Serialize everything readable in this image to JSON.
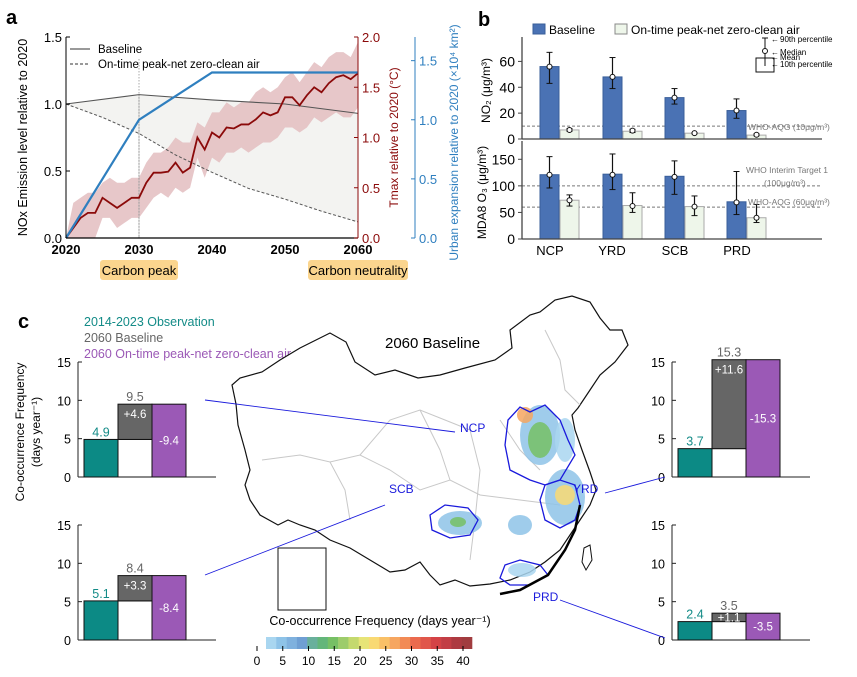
{
  "chart_data": [
    {
      "id": "a",
      "panel_label": "a",
      "type": "line",
      "x": [
        2020,
        2030,
        2040,
        2050,
        2060
      ],
      "xlim": [
        2020,
        2060
      ],
      "xticks": [
        "2020",
        "2030",
        "2040",
        "2050",
        "2060"
      ],
      "ylabel_left": "NOx Emission level relative to 2020",
      "ylim_left": [
        0,
        1.5
      ],
      "yticks_left": [
        "0.0",
        "0.5",
        "1.0",
        "1.5"
      ],
      "ylabel_right1": "Tmax relative to 2020 (°C)",
      "ylim_right1": [
        0,
        2.0
      ],
      "yticks_right1": [
        "0.0",
        "0.5",
        "1.0",
        "1.5",
        "2.0"
      ],
      "ylabel_right2": "Urban expansion relative to 2020 (×10⁴ km²)",
      "ylim_right2": [
        0,
        1.7
      ],
      "yticks_right2": [
        "0.0",
        "0.5",
        "1.0",
        "1.5"
      ],
      "legend": [
        "Baseline",
        "On-time peak-net zero-clean air"
      ],
      "legend_position": "top-left",
      "annotations": [
        "Carbon peak",
        "Carbon neutrality"
      ],
      "annotation_color": "#fbd58e",
      "series": [
        {
          "name": "Baseline",
          "axis": "left",
          "style": "solid",
          "color": "#555555",
          "x": [
            2020,
            2030,
            2040,
            2050,
            2060
          ],
          "values": [
            1.0,
            1.07,
            1.03,
            1.0,
            0.93
          ]
        },
        {
          "name": "On-time peak-net zero-clean air",
          "axis": "left",
          "style": "dashed",
          "color": "#555555",
          "x": [
            2020,
            2025,
            2030,
            2035,
            2040,
            2045,
            2050,
            2055,
            2060
          ],
          "values": [
            1.0,
            0.9,
            0.78,
            0.62,
            0.49,
            0.37,
            0.29,
            0.2,
            0.12
          ]
        },
        {
          "name": "Tmax",
          "axis": "right1",
          "style": "solid",
          "color": "#8b0a0a",
          "x": [
            2020,
            2021,
            2022,
            2023,
            2024,
            2025,
            2026,
            2027,
            2028,
            2029,
            2030,
            2031,
            2032,
            2033,
            2034,
            2035,
            2036,
            2037,
            2038,
            2039,
            2040,
            2041,
            2042,
            2043,
            2044,
            2045,
            2046,
            2047,
            2048,
            2049,
            2050,
            2051,
            2052,
            2053,
            2054,
            2055,
            2056,
            2057,
            2058,
            2059,
            2060
          ],
          "values": [
            0.0,
            0.1,
            0.2,
            0.25,
            0.25,
            0.4,
            0.35,
            0.3,
            0.35,
            0.4,
            0.4,
            0.55,
            0.65,
            0.65,
            0.66,
            0.75,
            0.65,
            0.7,
            1.0,
            0.88,
            1.05,
            1.0,
            1.1,
            1.09,
            1.13,
            1.13,
            1.18,
            1.25,
            1.22,
            1.25,
            1.4,
            1.4,
            1.32,
            1.42,
            1.5,
            1.45,
            1.54,
            1.6,
            1.62,
            1.58,
            1.64
          ],
          "band_low": [
            0.0,
            0.0,
            0.0,
            0.0,
            0.0,
            0.2,
            0.2,
            0.1,
            0.15,
            0.2,
            0.2,
            0.3,
            0.4,
            0.45,
            0.4,
            0.5,
            0.45,
            0.5,
            0.8,
            0.6,
            0.8,
            0.75,
            0.85,
            0.85,
            0.9,
            0.85,
            0.9,
            0.95,
            0.95,
            1.0,
            1.1,
            1.1,
            1.05,
            1.1,
            1.2,
            1.15,
            1.2,
            1.25,
            1.2,
            1.2,
            1.3
          ],
          "band_high": [
            0.0,
            0.35,
            0.4,
            0.45,
            0.45,
            0.55,
            0.6,
            0.55,
            0.55,
            0.6,
            0.6,
            0.75,
            0.85,
            0.85,
            0.9,
            1.0,
            0.95,
            0.95,
            1.15,
            1.1,
            1.25,
            1.25,
            1.35,
            1.3,
            1.35,
            1.35,
            1.45,
            1.5,
            1.45,
            1.5,
            1.6,
            1.65,
            1.55,
            1.65,
            1.75,
            1.7,
            1.8,
            1.85,
            1.85,
            1.8,
            1.95
          ]
        },
        {
          "name": "Urban expansion",
          "axis": "right2",
          "style": "solid",
          "color": "#2f7fbf",
          "x": [
            2020,
            2030,
            2040,
            2060
          ],
          "values": [
            0.0,
            1.0,
            1.4,
            1.4
          ]
        }
      ]
    },
    {
      "id": "b-no2",
      "panel_label": "b",
      "type": "bar",
      "categories": [
        "NCP",
        "YRD",
        "SCB",
        "PRD"
      ],
      "ylabel": "NO₂ (μg/m³)",
      "ylim": [
        0,
        75
      ],
      "yticks": [
        "0",
        "20",
        "40",
        "60"
      ],
      "legend": [
        "Baseline",
        "On-time peak-net zero-clean air"
      ],
      "legend_position": "top",
      "series": [
        {
          "name": "Baseline",
          "color": "#4a72b4",
          "mean": [
            56,
            48,
            32,
            22
          ],
          "median": [
            56,
            48,
            32,
            22
          ],
          "p10": [
            43,
            39,
            27,
            16
          ],
          "p90": [
            67,
            63,
            39,
            31
          ]
        },
        {
          "name": "On-time peak-net zero-clean air",
          "color": "#eef6ea",
          "mean": [
            7,
            6,
            4.5,
            3
          ],
          "median": [
            7,
            6.5,
            4.5,
            3.3
          ],
          "p10": [
            6,
            5,
            4,
            2.5
          ],
          "p90": [
            8,
            7.5,
            5,
            4
          ]
        }
      ],
      "reference_lines": [
        {
          "value": 10,
          "label": "WHO-AQG (10μg/m³)"
        }
      ],
      "whisker_legend": [
        "90th percentile",
        "Median",
        "Mean",
        "10th percentile"
      ]
    },
    {
      "id": "b-o3",
      "type": "bar",
      "categories": [
        "NCP",
        "YRD",
        "SCB",
        "PRD"
      ],
      "ylabel": "MDA8 O₃ (μg/m³)",
      "ylim": [
        0,
        175
      ],
      "yticks": [
        "0",
        "50",
        "100",
        "150"
      ],
      "series": [
        {
          "name": "Baseline",
          "color": "#4a72b4",
          "mean": [
            121,
            122,
            118,
            70
          ],
          "median": [
            121,
            121,
            117,
            69
          ],
          "p10": [
            96,
            93,
            84,
            46
          ],
          "p90": [
            155,
            160,
            147,
            127
          ]
        },
        {
          "name": "On-time peak-net zero-clean air",
          "color": "#eef6ea",
          "mean": [
            73,
            63,
            61,
            40
          ],
          "median": [
            73,
            62,
            61,
            40
          ],
          "p10": [
            62,
            50,
            44,
            31
          ],
          "p90": [
            83,
            87,
            81,
            65
          ]
        }
      ],
      "reference_lines": [
        {
          "value": 100,
          "label": "WHO Interim Target 1",
          "label2": "(100μg/m³)"
        },
        {
          "value": 60,
          "label": "WHO-AQG (60μg/m³)"
        }
      ]
    },
    {
      "id": "c",
      "panel_label": "c",
      "type": "bar",
      "title": "2060 Baseline",
      "ylabel": "Co-occurrence Frequency (days year⁻¹)",
      "ylim": [
        0,
        15
      ],
      "yticks": [
        "0",
        "5",
        "10",
        "15"
      ],
      "legend": [
        {
          "label": "2014-2023 Observation",
          "color": "#138b87"
        },
        {
          "label": "2060 Baseline",
          "color": "#666666"
        },
        {
          "label": "2060 On-time peak-net zero-clean air",
          "color": "#9b59b6"
        }
      ],
      "regions": [
        {
          "name": "NCP",
          "observation": 4.9,
          "baseline": 9.5,
          "increase": "+4.6",
          "clean_air_change": "-9.4",
          "obs_label": "4.9",
          "base_label": "9.5"
        },
        {
          "name": "SCB",
          "observation": 5.1,
          "baseline": 8.4,
          "increase": "+3.3",
          "clean_air_change": "-8.4",
          "obs_label": "5.1",
          "base_label": "8.4"
        },
        {
          "name": "YRD",
          "observation": 3.7,
          "baseline": 15.3,
          "increase": "+11.6",
          "clean_air_change": "-15.3",
          "obs_label": "3.7",
          "base_label": "15.3"
        },
        {
          "name": "PRD",
          "observation": 2.4,
          "baseline": 3.5,
          "increase": "+1.1",
          "clean_air_change": "-3.5",
          "obs_label": "2.4",
          "base_label": "3.5"
        }
      ],
      "colorbar": {
        "label": "Co-occurrence Frequency (days year⁻¹)",
        "ticks": [
          "0",
          "5",
          "10",
          "15",
          "20",
          "25",
          "30",
          "35",
          "40"
        ],
        "range": [
          0,
          42
        ],
        "colors": [
          "#a9d6f0",
          "#8ec3e8",
          "#7fb1de",
          "#6f9fd3",
          "#69b09c",
          "#63b67a",
          "#76c065",
          "#9dcc6b",
          "#c4d96e",
          "#e7e477",
          "#f9d973",
          "#f9c067",
          "#f6a660",
          "#f28a55",
          "#eb6a4e",
          "#e0574b",
          "#d44246",
          "#c23e45",
          "#ad3a41",
          "#a13c3f"
        ]
      },
      "map_labels": [
        "NCP",
        "YRD",
        "SCB",
        "PRD"
      ]
    }
  ]
}
